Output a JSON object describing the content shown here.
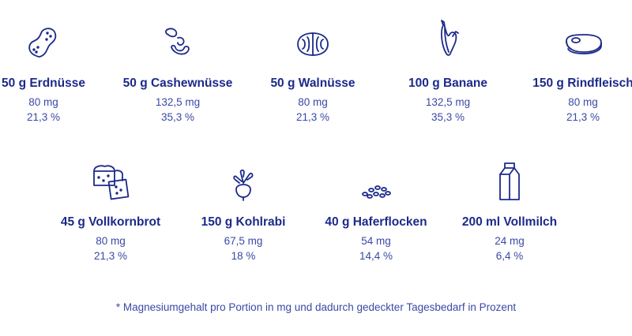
{
  "colors": {
    "text": "#1c2a8a",
    "subtext": "#3a49a6",
    "background": "#ffffff"
  },
  "items": [
    {
      "icon": "peanut-icon",
      "label": "50 g Erdnüsse",
      "mg": "80 mg",
      "pct": "21,3 %"
    },
    {
      "icon": "cashew-icon",
      "label": "50 g Cashewnüsse",
      "mg": "132,5 mg",
      "pct": "35,3 %"
    },
    {
      "icon": "walnut-icon",
      "label": "50 g Walnüsse",
      "mg": "80 mg",
      "pct": "21,3 %"
    },
    {
      "icon": "banana-icon",
      "label": "100 g Banane",
      "mg": "132,5 mg",
      "pct": "35,3 %"
    },
    {
      "icon": "steak-icon",
      "label": "150 g Rindfleisch",
      "mg": "80 mg",
      "pct": "21,3 %"
    },
    {
      "icon": "bread-icon",
      "label": "45 g Vollkornbrot",
      "mg": "80 mg",
      "pct": "21,3 %"
    },
    {
      "icon": "kohlrabi-icon",
      "label": "150 g Kohlrabi",
      "mg": "67,5 mg",
      "pct": "18 %"
    },
    {
      "icon": "oats-icon",
      "label": "40 g Haferflocken",
      "mg": "54 mg",
      "pct": "14,4 %"
    },
    {
      "icon": "milk-icon",
      "label": "200 ml Vollmilch",
      "mg": "24 mg",
      "pct": "6,4 %"
    }
  ],
  "footnote": "* Magnesiumgehalt pro Portion in mg und dadurch gedeckter Tagesbedarf in Prozent"
}
